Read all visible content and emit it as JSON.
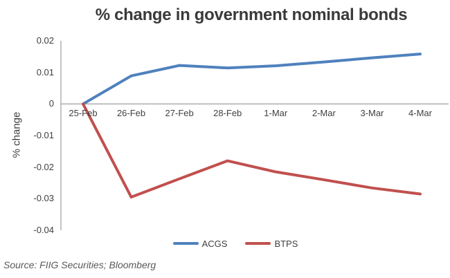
{
  "source_note": "Source: FIIG Securities; Bloomberg",
  "colors": {
    "axis_line": "#a6a6a6",
    "text": "#3f3f3f",
    "source_text": "#595959"
  },
  "chart_data": {
    "type": "line",
    "title": "% change in government nominal bonds",
    "xlabel": "",
    "ylabel": "% change",
    "categories": [
      "25-Feb",
      "26-Feb",
      "27-Feb",
      "28-Feb",
      "1-Mar",
      "2-Mar",
      "3-Mar",
      "4-Mar"
    ],
    "series": [
      {
        "name": "ACGS",
        "color": "#4F81BD",
        "values": [
          0,
          0.0089,
          0.0122,
          0.0114,
          0.0121,
          0.0133,
          0.0146,
          0.0158
        ]
      },
      {
        "name": "BTPS",
        "color": "#C0504D",
        "values": [
          0,
          -0.0295,
          -0.0237,
          -0.018,
          -0.0215,
          -0.024,
          -0.0266,
          -0.0285
        ]
      }
    ],
    "ylim": [
      -0.04,
      0.02
    ],
    "yticks": [
      0.02,
      0.01,
      0,
      -0.01,
      -0.02,
      -0.03,
      -0.04
    ],
    "ytick_labels": [
      "0.02",
      "0.01",
      "0",
      "-0.01",
      "-0.02",
      "-0.03",
      "-0.04"
    ],
    "grid": false,
    "legend_position": "bottom",
    "line_width": 4
  }
}
